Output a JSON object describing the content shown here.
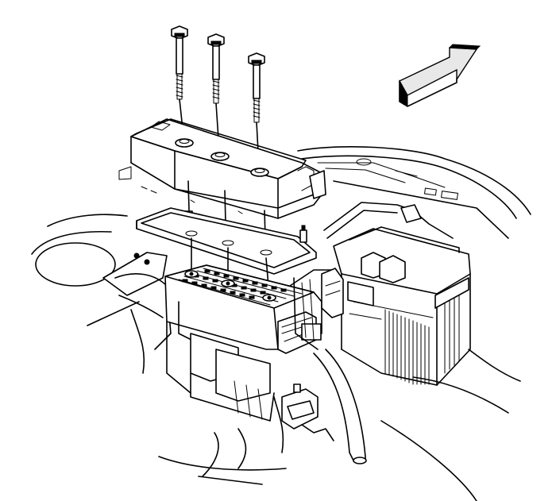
{
  "diagram": {
    "kind": "exploded-assembly-line-drawing",
    "direction_arrow": {
      "icon": "front-direction-arrow-icon",
      "orientation": "up-right"
    },
    "parts": [
      {
        "name": "bolt",
        "count": 3
      },
      {
        "name": "fuse-block-cover",
        "count": 1
      },
      {
        "name": "gasket",
        "count": 1
      },
      {
        "name": "fuse-block",
        "count": 1
      },
      {
        "name": "battery",
        "count": 1
      },
      {
        "name": "wiring-harness",
        "count": 1
      }
    ],
    "colors": {
      "line": "#000000",
      "background": "#ffffff"
    }
  }
}
